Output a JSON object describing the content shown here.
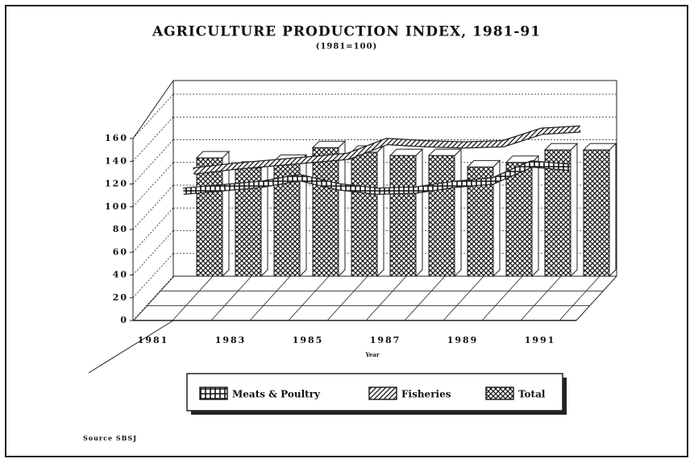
{
  "chart_data": {
    "type": "bar-line-3d",
    "title": "AGRICULTURE PRODUCTION INDEX, 1981-91",
    "subtitle": "(1981=100)",
    "x_label": "Year",
    "source": "Source SBSJ",
    "categories": [
      "1981",
      null,
      "1983",
      null,
      "1985",
      null,
      "1987",
      null,
      "1989",
      null,
      "1991"
    ],
    "ylim": [
      0,
      160
    ],
    "yticks": [
      0,
      20,
      40,
      60,
      80,
      100,
      120,
      140,
      160
    ],
    "grid": true,
    "series": [
      {
        "name": "Meats & Poultry",
        "kind": "line",
        "color": "#111111",
        "values": [
          100,
          103,
          106,
          112,
          104,
          100,
          101,
          106,
          109,
          124,
          121
        ]
      },
      {
        "name": "Fisheries",
        "kind": "line",
        "color": "#111111",
        "values": [
          108,
          112,
          115,
          118,
          121,
          134,
          132,
          131,
          132,
          143,
          145
        ]
      },
      {
        "name": "Total",
        "kind": "bar",
        "color": "#111111",
        "values": [
          104,
          95,
          101,
          113,
          109,
          106,
          106,
          96,
          100,
          111,
          111
        ]
      }
    ]
  }
}
